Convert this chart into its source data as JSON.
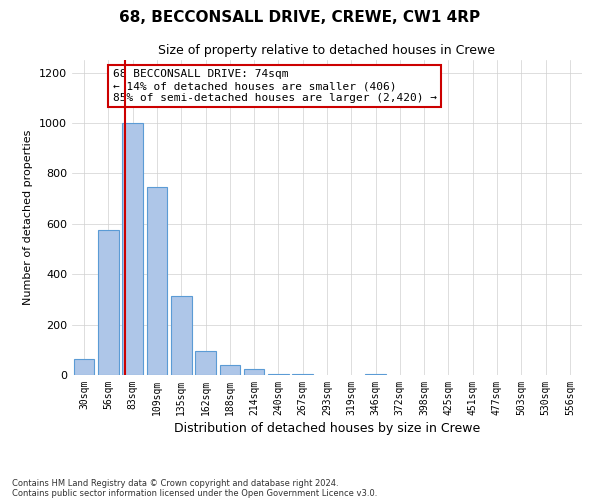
{
  "title": "68, BECCONSALL DRIVE, CREWE, CW1 4RP",
  "subtitle": "Size of property relative to detached houses in Crewe",
  "xlabel": "Distribution of detached houses by size in Crewe",
  "ylabel": "Number of detached properties",
  "bin_labels": [
    "30sqm",
    "56sqm",
    "83sqm",
    "109sqm",
    "135sqm",
    "162sqm",
    "188sqm",
    "214sqm",
    "240sqm",
    "267sqm",
    "293sqm",
    "319sqm",
    "346sqm",
    "372sqm",
    "398sqm",
    "425sqm",
    "451sqm",
    "477sqm",
    "503sqm",
    "530sqm",
    "556sqm"
  ],
  "bar_values": [
    65,
    575,
    1000,
    745,
    315,
    95,
    40,
    22,
    5,
    5,
    0,
    0,
    5,
    0,
    0,
    0,
    0,
    0,
    0,
    0,
    0
  ],
  "bar_color": "#aec6e8",
  "bar_edge_color": "#5b9bd5",
  "property_line_color": "#cc0000",
  "property_line_bin": 1,
  "ylim": [
    0,
    1250
  ],
  "yticks": [
    0,
    200,
    400,
    600,
    800,
    1000,
    1200
  ],
  "annotation_title": "68 BECCONSALL DRIVE: 74sqm",
  "annotation_line1": "← 14% of detached houses are smaller (406)",
  "annotation_line2": "85% of semi-detached houses are larger (2,420) →",
  "annotation_box_color": "#cc0000",
  "footer_line1": "Contains HM Land Registry data © Crown copyright and database right 2024.",
  "footer_line2": "Contains public sector information licensed under the Open Government Licence v3.0.",
  "n_bins": 21,
  "figsize": [
    6.0,
    5.0
  ],
  "dpi": 100
}
